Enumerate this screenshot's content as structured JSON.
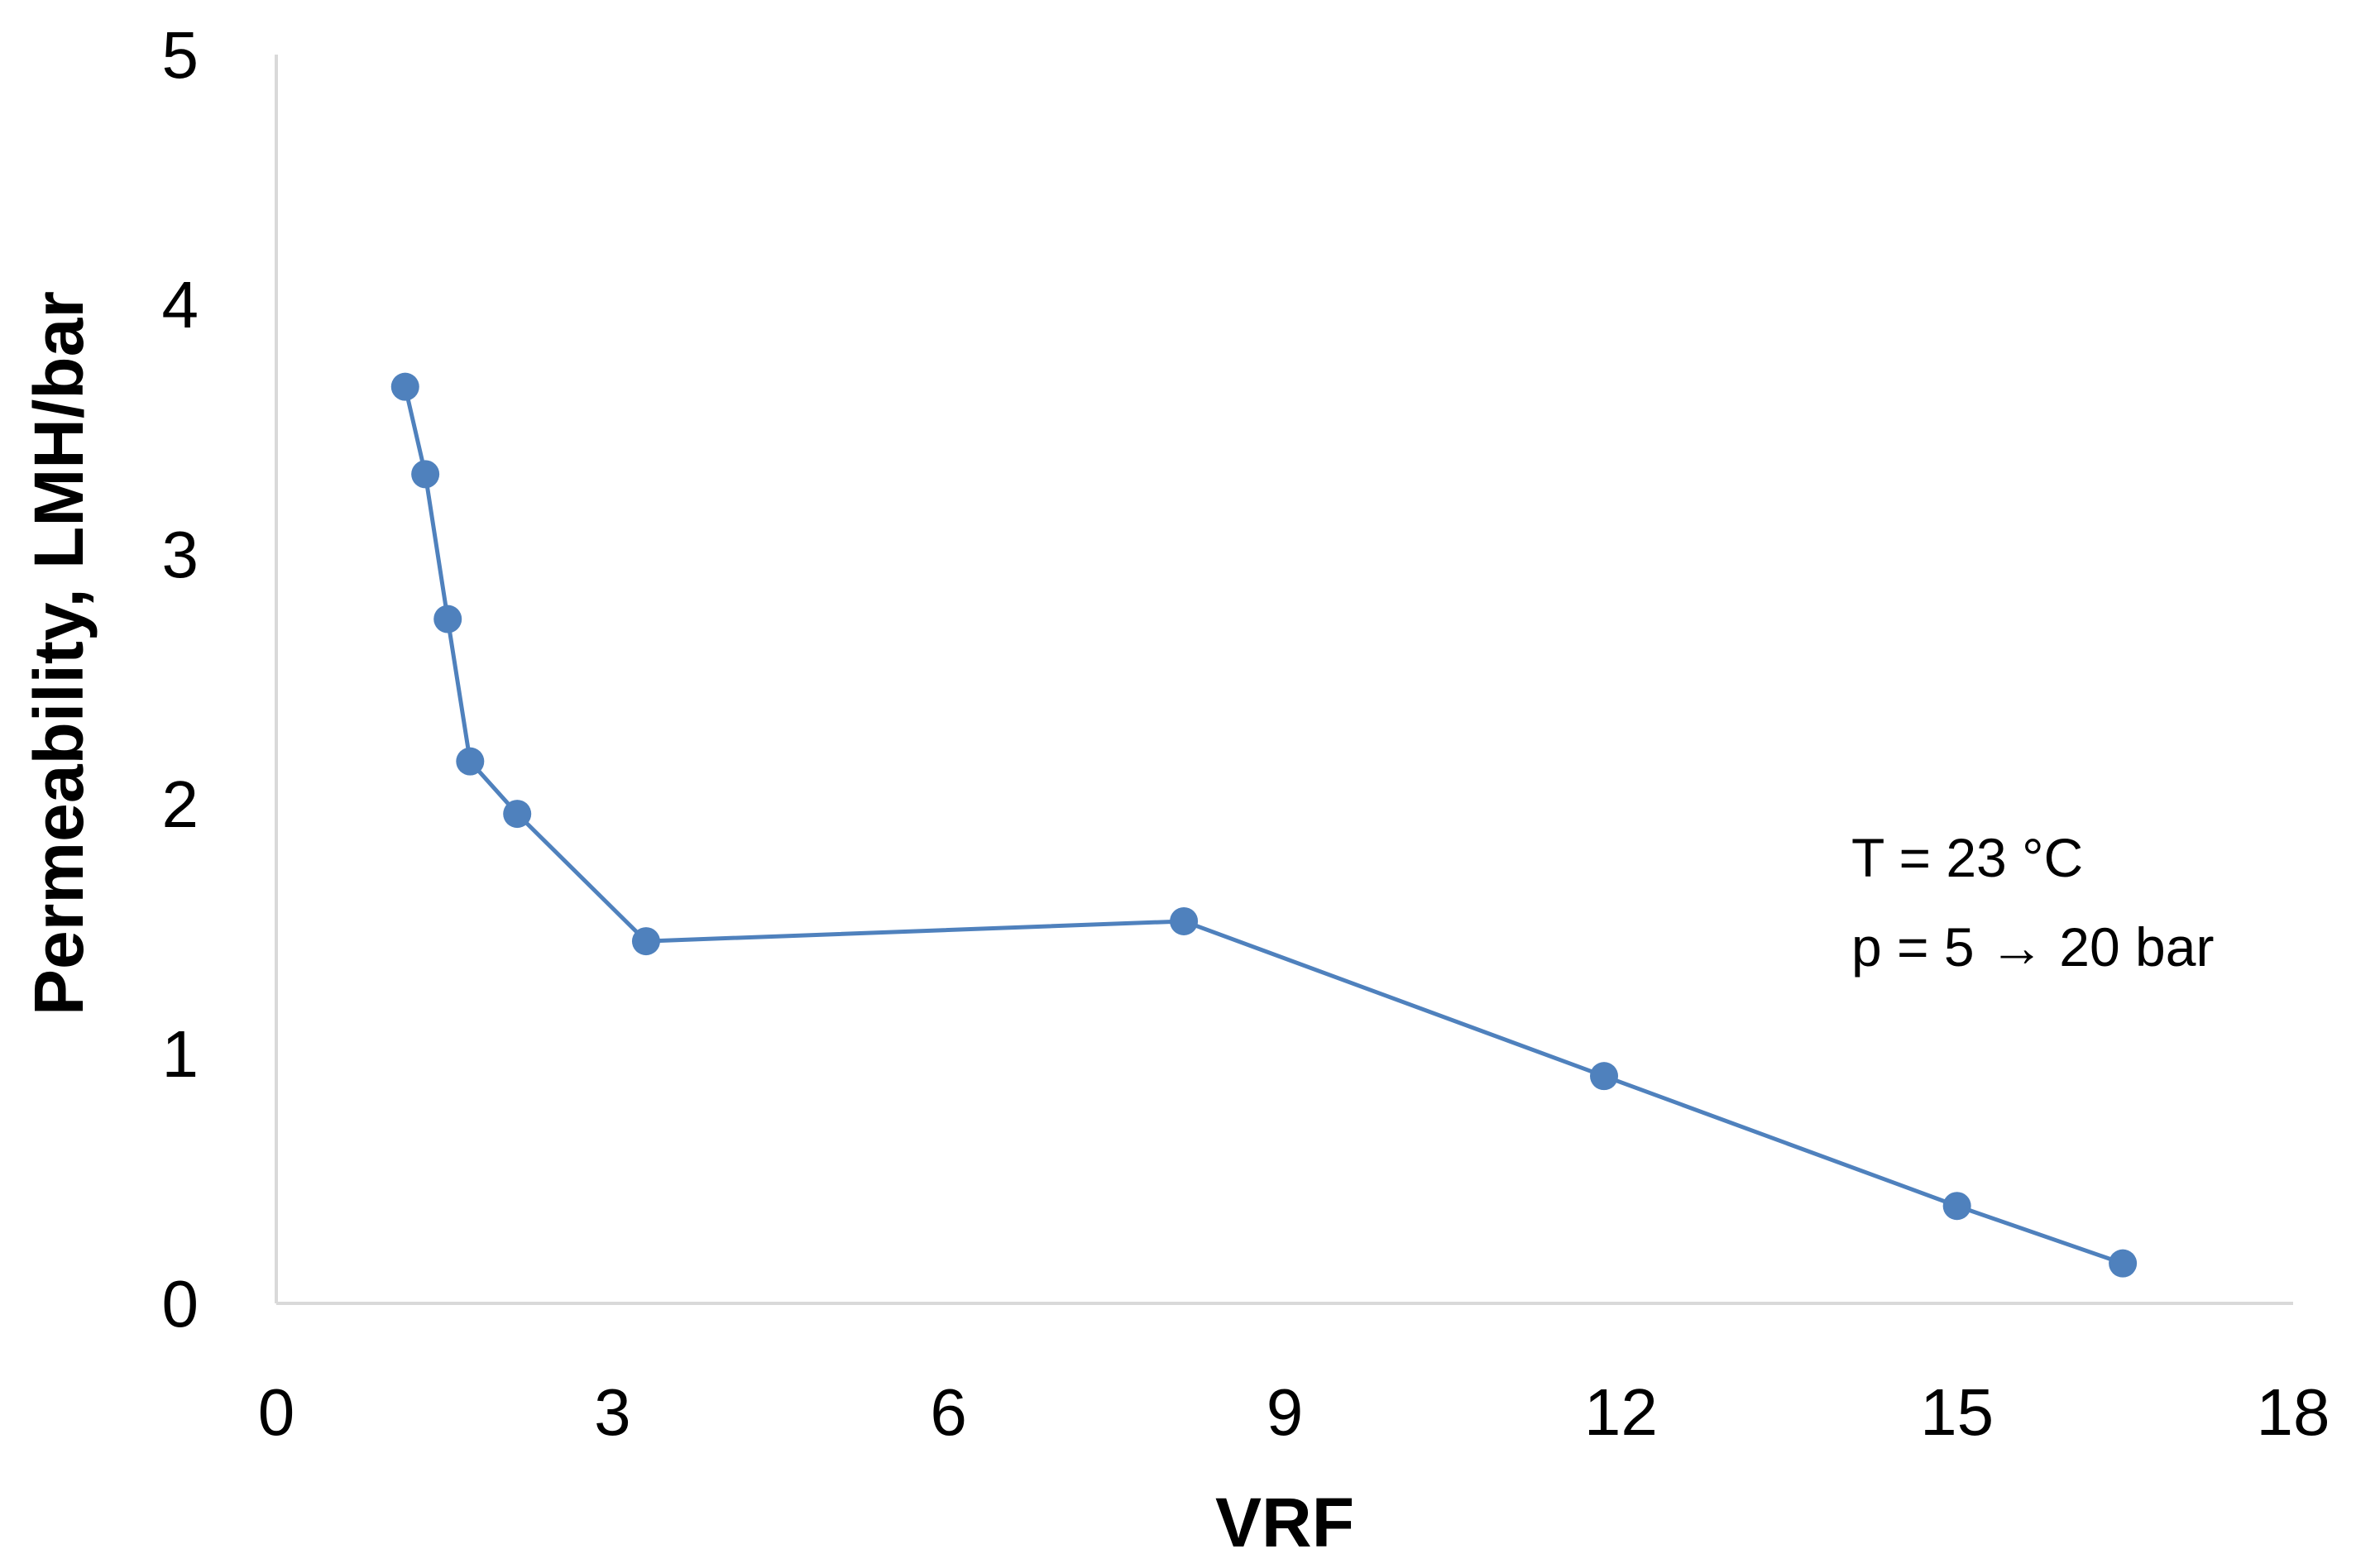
{
  "chart_data": {
    "type": "line",
    "title": "",
    "xlabel": "VRF",
    "ylabel": "Permeability, LMH/bar",
    "xlim": [
      0,
      18
    ],
    "ylim": [
      0,
      5
    ],
    "xticks": [
      0,
      3,
      6,
      9,
      12,
      15,
      18
    ],
    "yticks": [
      0,
      1,
      2,
      3,
      4,
      5
    ],
    "grid": false,
    "series": [
      {
        "name": "Permeability",
        "color": "#4f81bd",
        "marker": "circle",
        "x": [
          1.15,
          1.33,
          1.53,
          1.73,
          2.15,
          3.3,
          8.1,
          11.85,
          15.0,
          16.48
        ],
        "y": [
          3.67,
          3.32,
          2.74,
          2.17,
          1.96,
          1.45,
          1.53,
          0.91,
          0.39,
          0.16
        ]
      }
    ],
    "annotations": [
      "T = 23 °C",
      "p = 5 → 20 bar"
    ]
  }
}
